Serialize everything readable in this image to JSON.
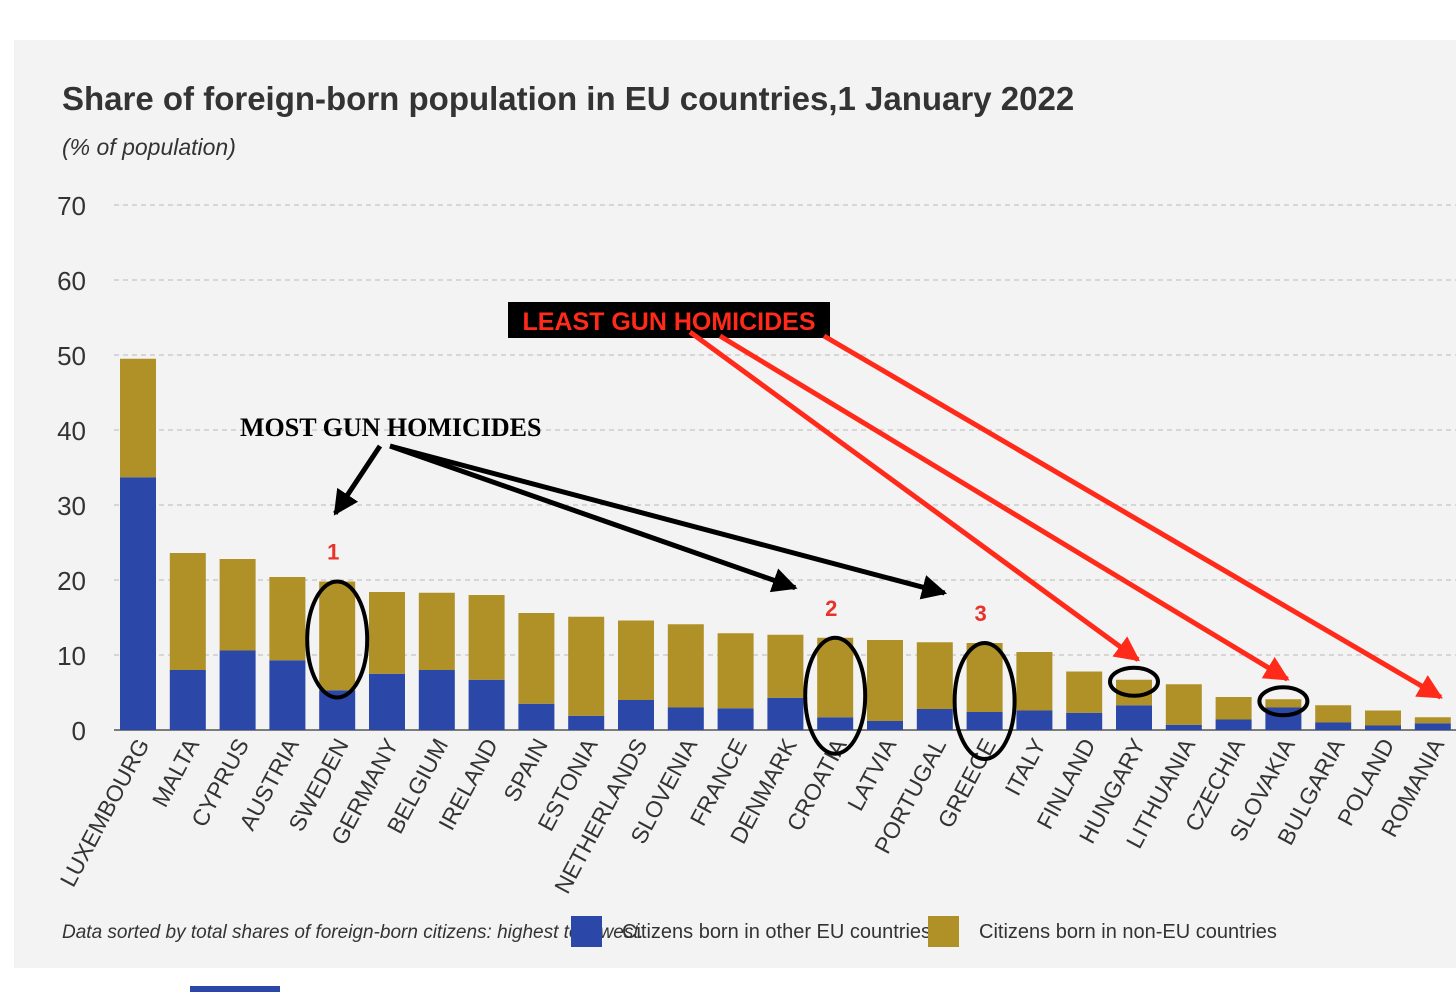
{
  "chart_data": {
    "type": "bar",
    "stacked": true,
    "title": "Share of foreign-born population in EU countries,1 January 2022",
    "subtitle": "(% of population)",
    "ylim": [
      0,
      70
    ],
    "yticks": [
      0,
      10,
      20,
      30,
      40,
      50,
      60,
      70
    ],
    "grid": true,
    "categories": [
      "LUXEMBOURG",
      "MALTA",
      "CYPRUS",
      "AUSTRIA",
      "SWEDEN",
      "GERMANY",
      "BELGIUM",
      "IRELAND",
      "SPAIN",
      "ESTONIA",
      "NETHERLANDS",
      "SLOVENIA",
      "FRANCE",
      "DENMARK",
      "CROATIA",
      "LATVIA",
      "PORTUGAL",
      "GREECE",
      "ITALY",
      "FINLAND",
      "HUNGARY",
      "LITHUANIA",
      "CZECHIA",
      "SLOVAKIA",
      "BULGARIA",
      "POLAND",
      "ROMANIA"
    ],
    "series": [
      {
        "name": "Citizens born in other EU countries",
        "color": "#2b47a8",
        "values": [
          33.7,
          8.0,
          10.6,
          9.3,
          5.3,
          7.5,
          8.0,
          6.7,
          3.5,
          1.9,
          4.0,
          3.0,
          2.9,
          4.3,
          1.7,
          1.2,
          2.8,
          2.4,
          2.6,
          2.3,
          3.3,
          0.7,
          1.4,
          3.0,
          1.0,
          0.6,
          0.9
        ]
      },
      {
        "name": "Citizens born in non-EU countries",
        "color": "#b09128",
        "values": [
          15.8,
          15.6,
          12.2,
          11.1,
          14.5,
          10.9,
          10.3,
          11.3,
          12.1,
          13.2,
          10.6,
          11.1,
          10.0,
          8.4,
          10.6,
          10.8,
          8.9,
          9.2,
          7.8,
          5.5,
          3.4,
          5.4,
          3.0,
          1.1,
          2.3,
          2.0,
          0.8
        ]
      }
    ],
    "legend_position": "bottom",
    "footnote": "Data sorted by total shares of foreign-born citizens: highest to lowest."
  },
  "annotations": {
    "least_label": "LEAST GUN HOMICIDES",
    "most_label": "MOST GUN HOMICIDES",
    "numbers": [
      {
        "label": "1",
        "country": "SWEDEN"
      },
      {
        "label": "2",
        "country": "CROATIA"
      },
      {
        "label": "3",
        "country": "GREECE"
      }
    ],
    "circled": [
      "SWEDEN",
      "CROATIA",
      "GREECE",
      "HUNGARY",
      "SLOVAKIA"
    ],
    "most_arrow_targets": [
      "SWEDEN",
      "CROATIA",
      "GREECE"
    ],
    "least_arrow_targets": [
      "HUNGARY",
      "SLOVAKIA",
      "ROMANIA"
    ],
    "colors": {
      "least": "#ff2a1a",
      "most": "#000000",
      "number": "#e8322a"
    }
  }
}
